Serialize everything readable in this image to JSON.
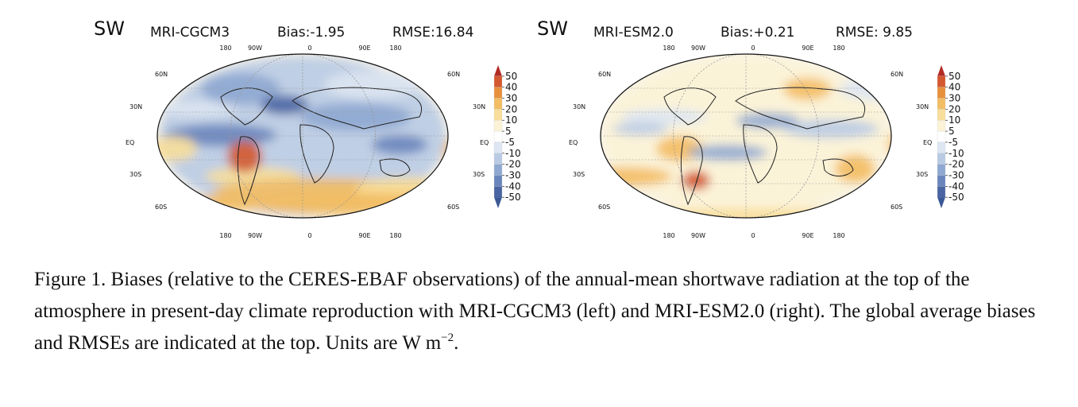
{
  "panels": [
    {
      "variable": "SW",
      "model": "MRI-CGCM3",
      "bias": "Bias:-1.95",
      "rmse": "RMSE:16.84"
    },
    {
      "variable": "SW",
      "model": "MRI-ESM2.0",
      "bias": "Bias:+0.21",
      "rmse": "RMSE: 9.85"
    }
  ],
  "map_labels": {
    "lon": [
      "180",
      "90W",
      "0",
      "90E",
      "180"
    ],
    "lat": [
      "60N",
      "30N",
      "EQ",
      "30S",
      "60S"
    ]
  },
  "colorbar": {
    "levels": [
      "50",
      "40",
      "30",
      "20",
      "10",
      "5",
      "-5",
      "-10",
      "-20",
      "-30",
      "-40",
      "-50"
    ],
    "colors": [
      "#b22b26",
      "#d4582f",
      "#e8903c",
      "#f3bd63",
      "#f8de9a",
      "#fcf3d6",
      "#ffffff",
      "#dde6f2",
      "#b9cbe4",
      "#8fa9d2",
      "#6a86bd",
      "#4a65a3",
      "#3b5896"
    ]
  },
  "caption": {
    "text": "Figure 1. Biases (relative to the CERES-EBAF observations) of the annual-mean shortwave radiation at the top of the atmosphere in present-day climate reproduction with MRI-CGCM3 (left) and MRI-ESM2.0 (right). The global average biases and RMSEs are indicated at the top. Units are W m",
    "units_exponent": "−2",
    "end": "."
  }
}
